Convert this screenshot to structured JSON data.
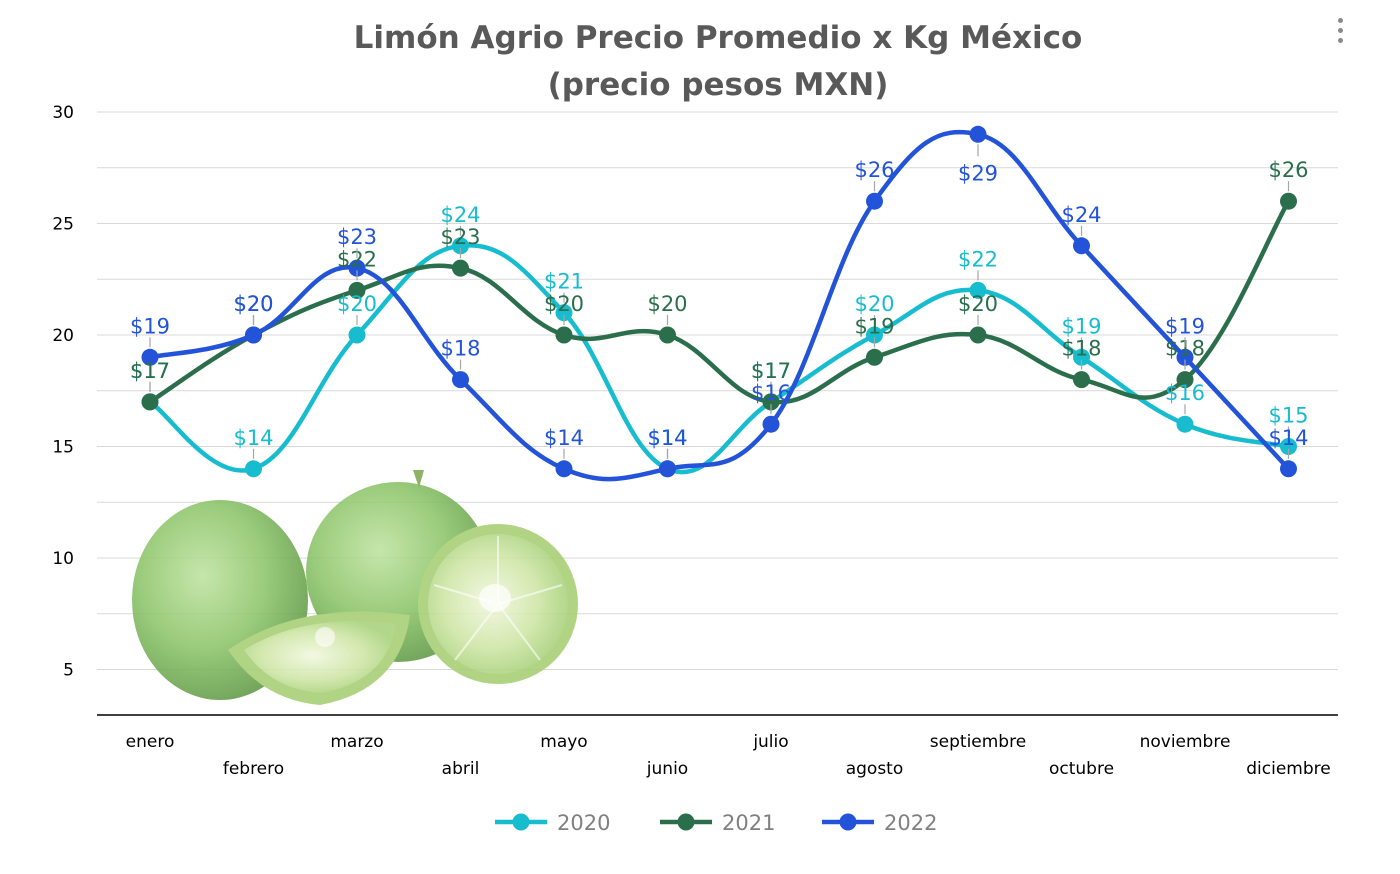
{
  "menu": {
    "icon": "more-vert-icon"
  },
  "colors": {
    "2020": "#17bccf",
    "2021": "#2a6e4c",
    "2022": "#2353d9",
    "grid": "#d9d9d9",
    "axis": "#000000"
  },
  "chart_data": {
    "type": "line",
    "title": [
      "Limón Agrio Precio Promedio x Kg México",
      "(precio pesos MXN)"
    ],
    "xlabel": "",
    "ylabel": "",
    "ylim": [
      3,
      30
    ],
    "yticks": [
      5,
      10,
      15,
      20,
      25,
      30
    ],
    "grid": true,
    "smooth": true,
    "legend": "bottom-center",
    "categories": [
      "enero",
      "febrero",
      "marzo",
      "abril",
      "mayo",
      "junio",
      "julio",
      "agosto",
      "septiembre",
      "octubre",
      "noviembre",
      "diciembre"
    ],
    "series": [
      {
        "name": "2020",
        "values": [
          17,
          14,
          20,
          24,
          21,
          14,
          17,
          20,
          22,
          19,
          16,
          15
        ],
        "labels": [
          "$17",
          "$14",
          "$20",
          "$24",
          "$21",
          "$14",
          "$17",
          "$20",
          "$22",
          "$19",
          "$16",
          "$15"
        ]
      },
      {
        "name": "2021",
        "values": [
          17,
          20,
          22,
          23,
          20,
          20,
          17,
          19,
          20,
          18,
          18,
          26
        ],
        "labels": [
          "$17",
          "$20",
          "$22",
          "$23",
          "$20",
          "$20",
          "$17",
          "$19",
          "$20",
          "$18",
          "$18",
          "$26"
        ]
      },
      {
        "name": "2022",
        "values": [
          19,
          20,
          23,
          18,
          14,
          14,
          16,
          26,
          29,
          24,
          19,
          14
        ],
        "labels": [
          "$19",
          "$20",
          "$23",
          "$18",
          "$14",
          "$14",
          "$16",
          "$26",
          "$29",
          "$24",
          "$19",
          "$14"
        ]
      }
    ],
    "image": {
      "icon": "limes-photo"
    }
  }
}
